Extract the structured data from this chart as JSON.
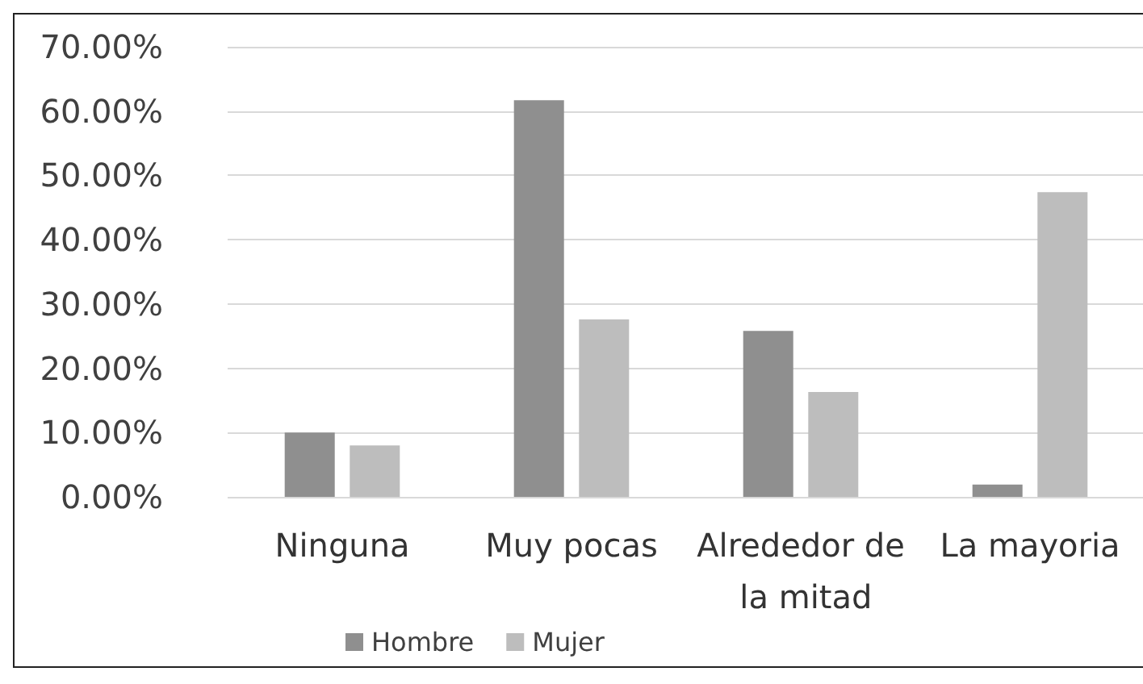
{
  "chart_data": {
    "type": "bar",
    "categories": [
      "Ninguna",
      "Muy pocas",
      "Alrededor de la mitad",
      "La mayoria"
    ],
    "series": [
      {
        "name": "Hombre",
        "color": "#8f8f8f",
        "values": [
          10.0,
          61.7,
          25.8,
          1.9
        ]
      },
      {
        "name": "Mujer",
        "color": "#bdbdbd",
        "values": [
          8.0,
          27.6,
          16.3,
          47.4
        ]
      }
    ],
    "ylim": [
      0,
      70
    ],
    "yticks": [
      {
        "value": 0,
        "label": "0.00%"
      },
      {
        "value": 10,
        "label": "10.00%"
      },
      {
        "value": 20,
        "label": "20.00%"
      },
      {
        "value": 30,
        "label": "30.00%"
      },
      {
        "value": 40,
        "label": "40.00%"
      },
      {
        "value": 50,
        "label": "50.00%"
      },
      {
        "value": 60,
        "label": "60.00%"
      },
      {
        "value": 70,
        "label": "70.00%"
      }
    ],
    "grid": "y",
    "legend": "bottom"
  }
}
